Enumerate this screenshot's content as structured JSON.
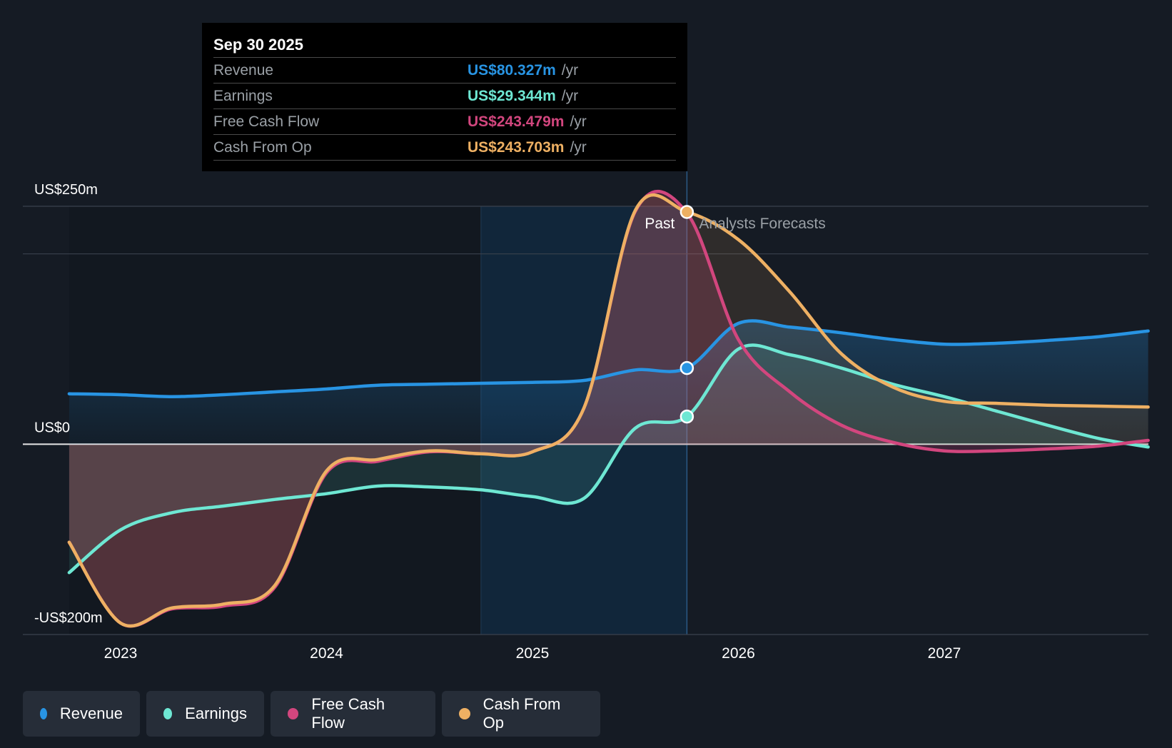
{
  "colors": {
    "background": "#151b24",
    "revenue": "#2894e3",
    "earnings": "#6ee7d3",
    "free_cash_flow": "#d2467e",
    "cash_from_op": "#eeb063",
    "grid": "#3a424d",
    "zero_line": "#e6e6e6",
    "past_shade": "#12283d"
  },
  "tooltip": {
    "date": "Sep 30 2025",
    "rows": [
      {
        "label": "Revenue",
        "value": "US$80.327m",
        "unit": "/yr",
        "color": "#2894e3"
      },
      {
        "label": "Earnings",
        "value": "US$29.344m",
        "unit": "/yr",
        "color": "#6ee7d3"
      },
      {
        "label": "Free Cash Flow",
        "value": "US$243.479m",
        "unit": "/yr",
        "color": "#d2467e"
      },
      {
        "label": "Cash From Op",
        "value": "US$243.703m",
        "unit": "/yr",
        "color": "#eeb063"
      }
    ]
  },
  "chart_data": {
    "type": "line",
    "title": "",
    "xlabel": "",
    "ylabel": "",
    "unit": "US$ millions",
    "ylim": [
      -200,
      250
    ],
    "xlim": [
      2022.75,
      2027.99
    ],
    "y_tick_labels": [
      {
        "value": 250,
        "label": "US$250m"
      },
      {
        "value": 0,
        "label": "US$0"
      },
      {
        "value": -200,
        "label": "-US$200m"
      }
    ],
    "gridlines": [
      250,
      200,
      0,
      -200
    ],
    "x_tick_labels": [
      {
        "value": 2023,
        "label": "2023"
      },
      {
        "value": 2024,
        "label": "2024"
      },
      {
        "value": 2025,
        "label": "2025"
      },
      {
        "value": 2026,
        "label": "2026"
      },
      {
        "value": 2027,
        "label": "2027"
      }
    ],
    "past_label": "Past",
    "forecast_label": "Analysts Forecasts",
    "highlight_range": [
      2024.75,
      2025.75
    ],
    "divider_x": 2025.75,
    "highlight_x": 2025.75,
    "legend": [
      "Revenue",
      "Earnings",
      "Free Cash Flow",
      "Cash From Op"
    ],
    "series": [
      {
        "name": "Revenue",
        "key": "revenue",
        "color": "#2894e3",
        "x": [
          2022.75,
          2023.0,
          2023.25,
          2023.5,
          2023.75,
          2024.0,
          2024.25,
          2024.5,
          2024.75,
          2025.0,
          2025.25,
          2025.5,
          2025.75,
          2026.0,
          2026.25,
          2026.5,
          2026.75,
          2027.0,
          2027.25,
          2027.5,
          2027.75,
          2027.99
        ],
        "values": [
          53,
          52,
          50,
          52,
          55,
          58,
          62,
          63,
          64,
          65,
          67,
          78,
          80,
          127,
          123,
          117,
          110,
          105,
          106,
          109,
          113,
          119
        ]
      },
      {
        "name": "Earnings",
        "key": "earnings",
        "color": "#6ee7d3",
        "x": [
          2022.75,
          2023.0,
          2023.25,
          2023.5,
          2023.75,
          2024.0,
          2024.25,
          2024.5,
          2024.75,
          2025.0,
          2025.25,
          2025.5,
          2025.75,
          2026.0,
          2026.25,
          2026.5,
          2026.75,
          2027.0,
          2027.25,
          2027.5,
          2027.75,
          2027.99
        ],
        "values": [
          -135,
          -90,
          -72,
          -65,
          -58,
          -52,
          -44,
          -45,
          -48,
          -55,
          -57,
          17,
          29,
          100,
          94,
          80,
          63,
          50,
          35,
          20,
          6,
          -3
        ]
      },
      {
        "name": "Free Cash Flow",
        "key": "free_cash_flow",
        "color": "#d2467e",
        "x": [
          2022.75,
          2023.0,
          2023.25,
          2023.5,
          2023.75,
          2024.0,
          2024.25,
          2024.5,
          2024.75,
          2025.0,
          2025.25,
          2025.5,
          2025.75,
          2026.0,
          2026.25,
          2026.5,
          2026.75,
          2027.0,
          2027.25,
          2027.5,
          2027.75,
          2027.99
        ],
        "values": [
          -103,
          -188,
          -173,
          -170,
          -150,
          -30,
          -18,
          -8,
          -10,
          -8,
          38,
          245,
          243,
          110,
          55,
          20,
          2,
          -7,
          -7,
          -5,
          -2,
          4
        ]
      },
      {
        "name": "Cash From Op",
        "key": "cash_from_op",
        "color": "#eeb063",
        "x": [
          2022.75,
          2023.0,
          2023.25,
          2023.5,
          2023.75,
          2024.0,
          2024.25,
          2024.5,
          2024.75,
          2025.0,
          2025.25,
          2025.5,
          2025.75,
          2026.0,
          2026.25,
          2026.5,
          2026.75,
          2027.0,
          2027.25,
          2027.5,
          2027.75,
          2027.99
        ],
        "values": [
          -103,
          -188,
          -172,
          -168,
          -148,
          -28,
          -16,
          -7,
          -10,
          -8,
          38,
          246,
          244,
          215,
          160,
          95,
          60,
          45,
          43,
          41,
          40,
          39
        ]
      }
    ]
  },
  "legend_items": [
    {
      "label": "Revenue",
      "color": "#2894e3"
    },
    {
      "label": "Earnings",
      "color": "#6ee7d3"
    },
    {
      "label": "Free Cash Flow",
      "color": "#d2467e"
    },
    {
      "label": "Cash From Op",
      "color": "#eeb063"
    }
  ]
}
